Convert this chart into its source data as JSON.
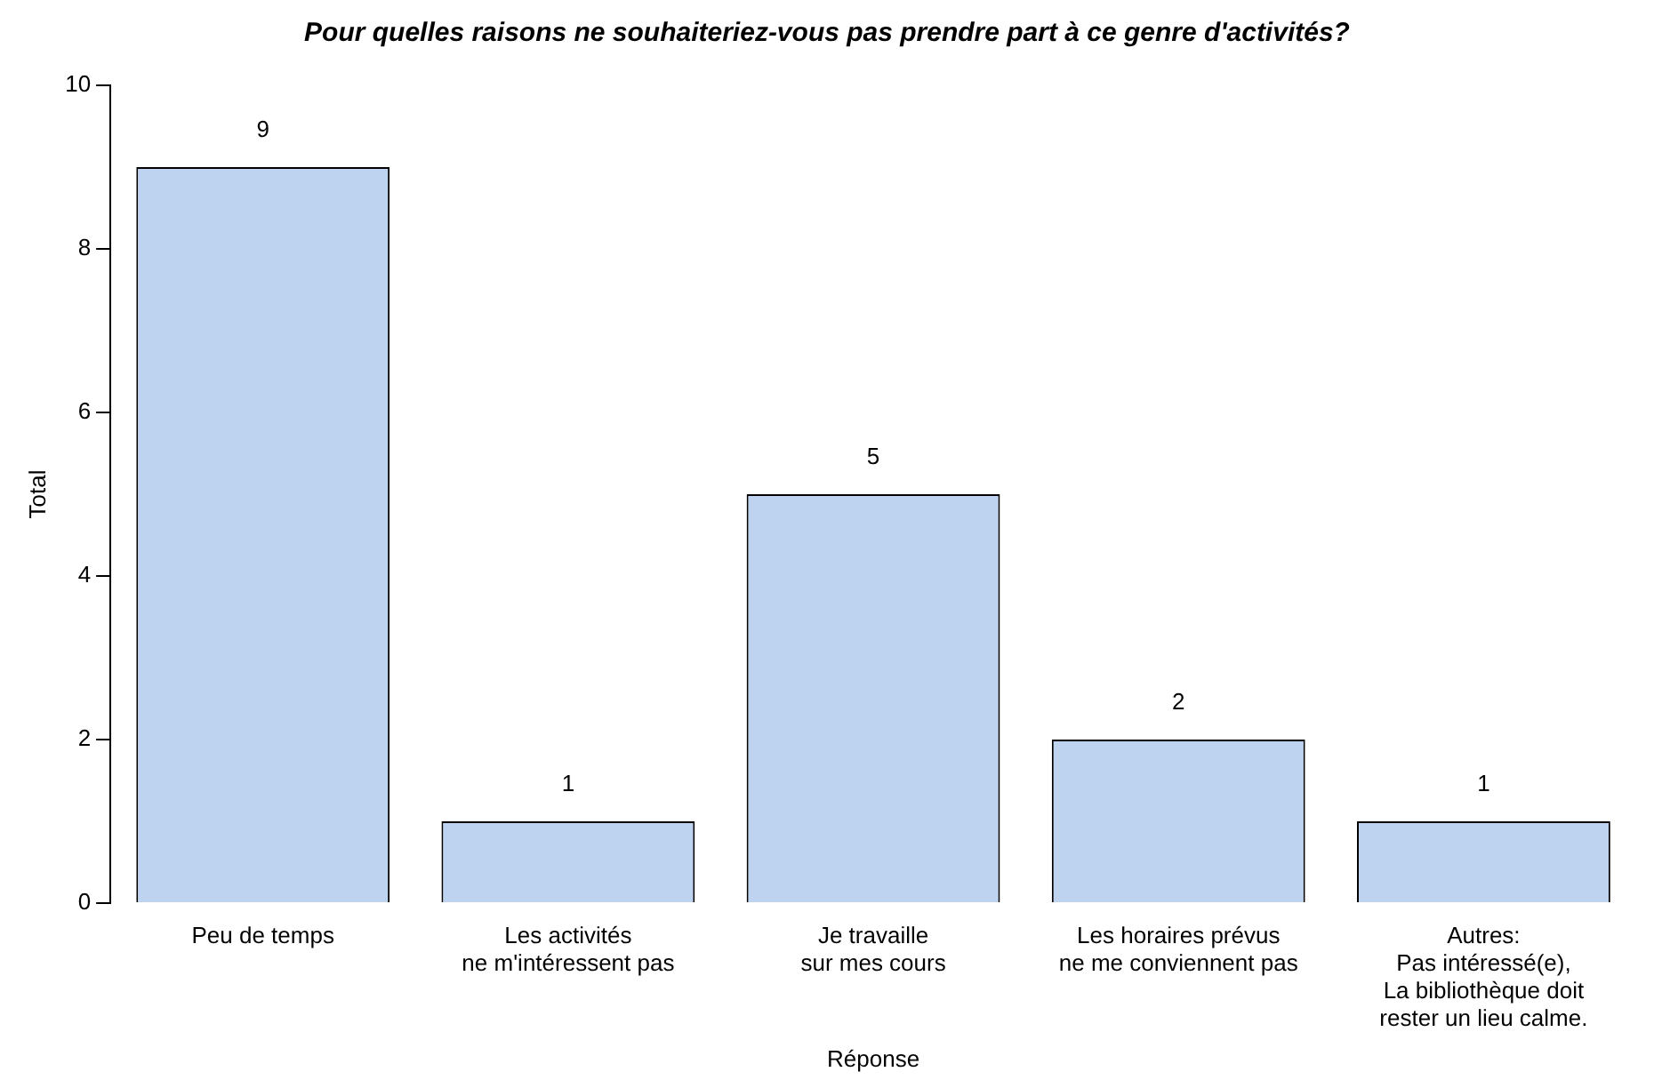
{
  "chart_data": {
    "type": "bar",
    "title": "Pour quelles raisons ne souhaiteriez-vous pas prendre part à ce genre d'activités?",
    "xlabel": "Réponse",
    "ylabel": "Total",
    "categories": [
      "Peu de temps",
      "Les activités\nne m'intéressent pas",
      "Je travaille\nsur mes cours",
      "Les horaires prévus\nne me conviennent pas",
      "Autres:\nPas intéressé(e),\nLa bibliothèque doit\nrester un lieu calme."
    ],
    "values": [
      9,
      1,
      5,
      2,
      1
    ],
    "color": "#bdd3f0",
    "ylim": [
      0,
      10
    ],
    "yticks": [
      0,
      2,
      4,
      6,
      8,
      10
    ],
    "data_labels": true,
    "grid": false,
    "legend": false
  }
}
